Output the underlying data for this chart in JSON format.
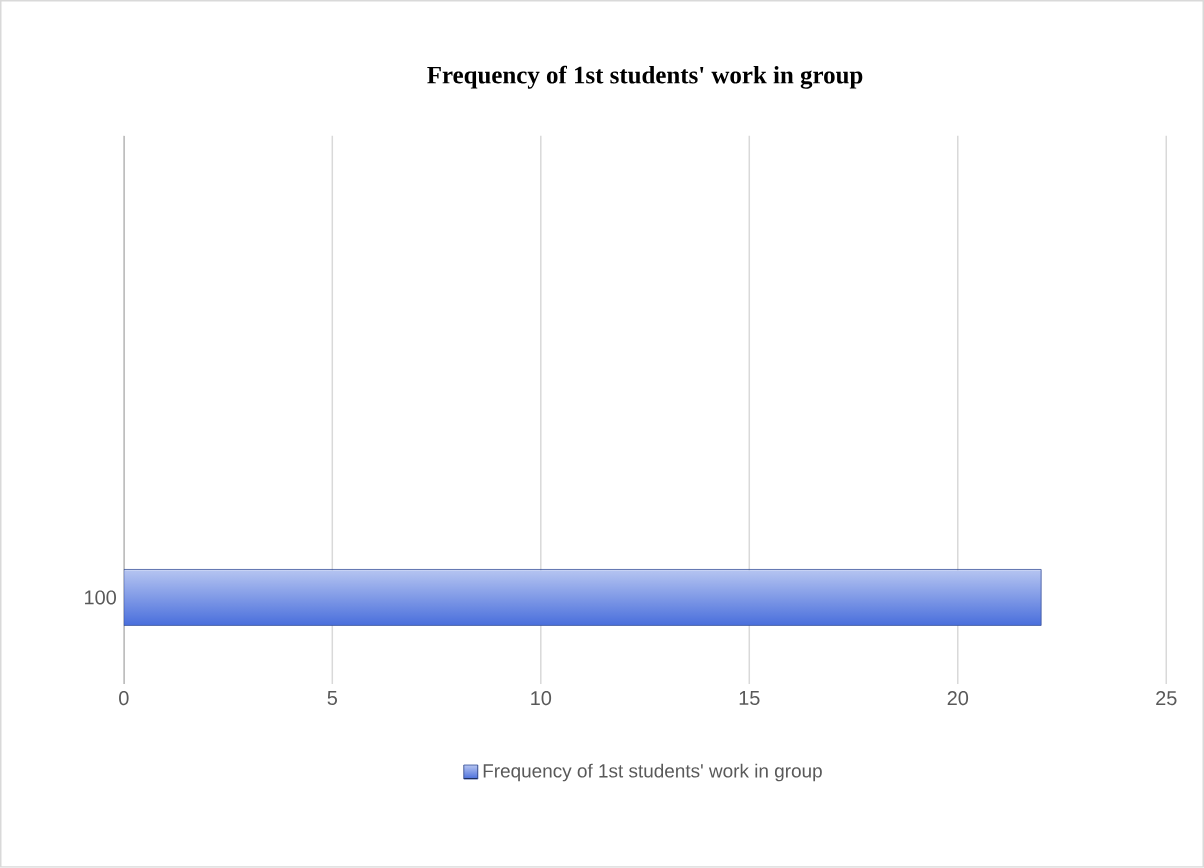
{
  "chart_data": {
    "type": "bar",
    "orientation": "horizontal",
    "title": "Frequency of 1st students' work in group",
    "categories": [
      "100"
    ],
    "series": [
      {
        "name": "Frequency of 1st students' work in group",
        "color": "#4a6fdc",
        "values": [
          22
        ]
      }
    ],
    "xlim": [
      0,
      25
    ],
    "xticks": [
      0,
      5,
      10,
      15,
      20,
      25
    ],
    "grid": "x",
    "legend": "bottom"
  }
}
